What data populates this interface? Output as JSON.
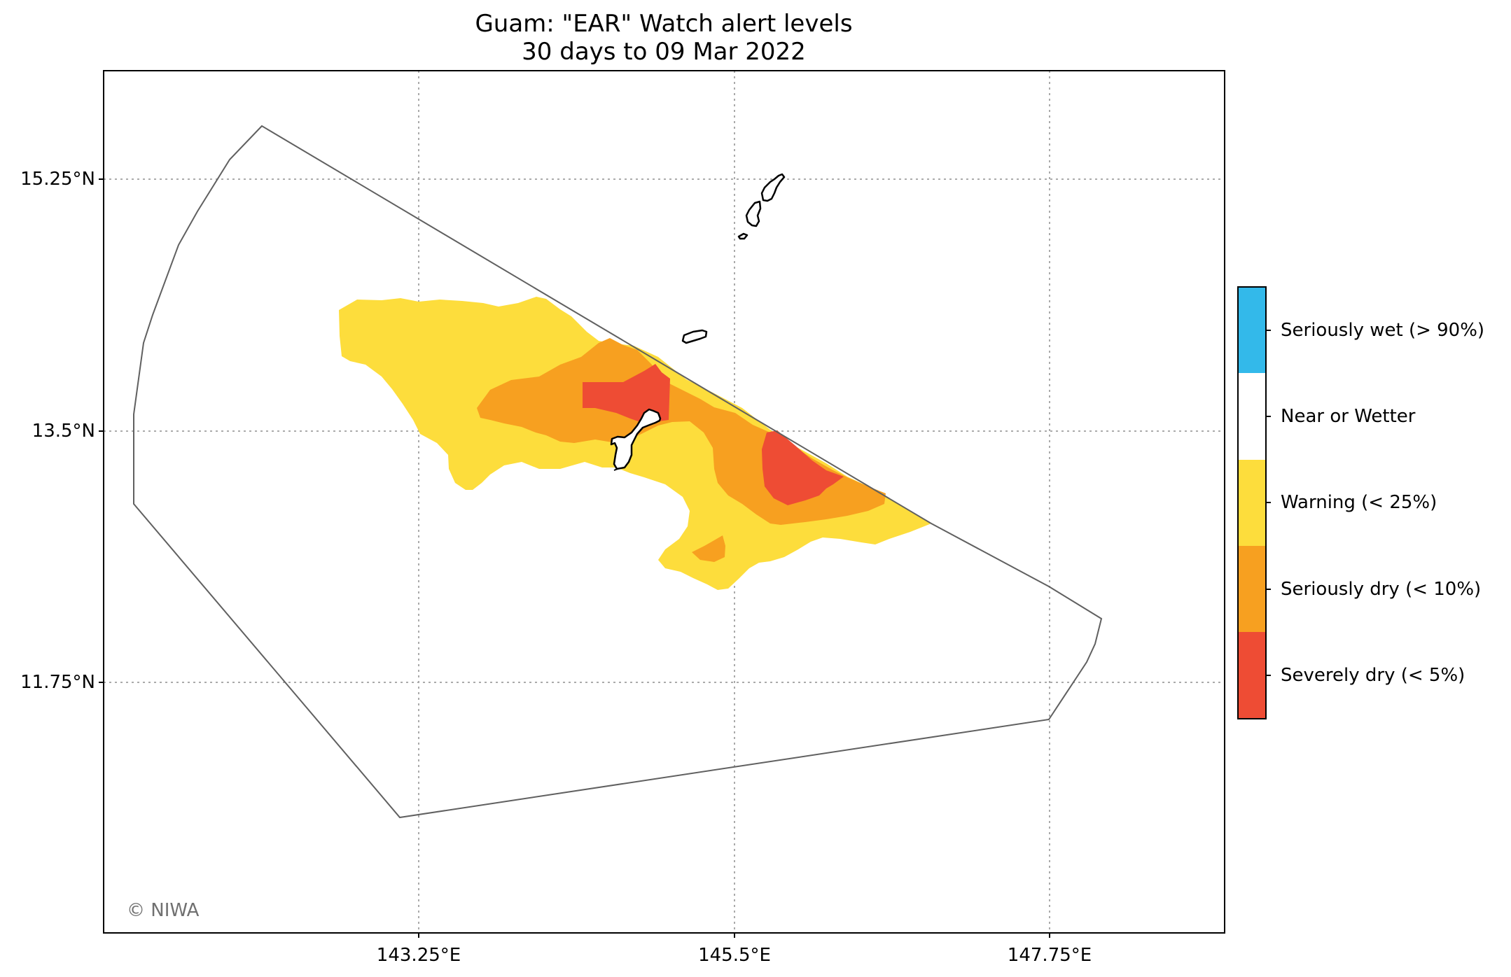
{
  "title_line1": "Guam: \"EAR\" Watch alert levels",
  "title_line2": "30 days to 09 Mar 2022",
  "credit": "© NIWA",
  "latitude_labels": [
    "15.25°N",
    "13.5°N",
    "11.75°N"
  ],
  "longitude_labels": [
    "143.25°E",
    "145.5°E",
    "147.75°E"
  ],
  "legend": [
    {
      "label": "Seriously wet (> 90%)",
      "color": "#33b9ea"
    },
    {
      "label": "Near or Wetter",
      "color": "#ffffff"
    },
    {
      "label": "Warning (< 25%)",
      "color": "#fddd3c"
    },
    {
      "label": "Seriously dry (< 10%)",
      "color": "#f7a020"
    },
    {
      "label": "Severely dry (< 5%)",
      "color": "#ee4c34"
    }
  ],
  "colors": {
    "frame": "#000000",
    "boundary": "#606060",
    "gridline": "#aaaaaa",
    "credit": "#707070"
  }
}
